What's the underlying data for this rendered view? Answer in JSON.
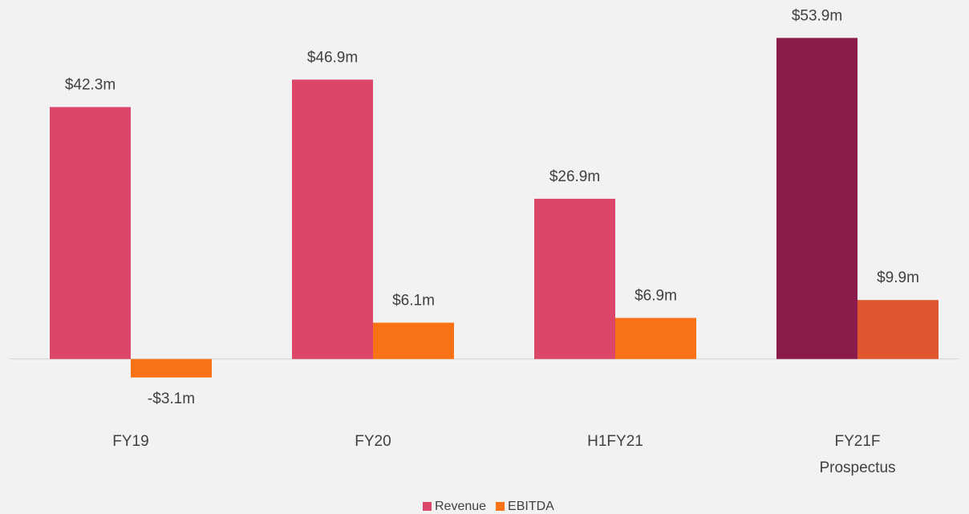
{
  "chart_data": {
    "type": "bar",
    "categories": [
      "FY19",
      "FY20",
      "H1FY21",
      "FY21F\nProspectus"
    ],
    "series": [
      {
        "name": "Revenue",
        "color": "#db4669",
        "colors": [
          "#db4669",
          "#db4669",
          "#db4669",
          "#8a1b4b"
        ],
        "values": [
          42.3,
          46.9,
          26.9,
          53.9
        ],
        "value_labels": [
          "$42.3m",
          "$46.9m",
          "$26.9m",
          "$53.9m"
        ]
      },
      {
        "name": "EBITDA",
        "color": "#f97316",
        "colors": [
          "#f97316",
          "#f97316",
          "#f97316",
          "#e0562e"
        ],
        "values": [
          -3.1,
          6.1,
          6.9,
          9.9
        ],
        "value_labels": [
          "-$3.1m",
          "$6.1m",
          "$6.9m",
          "$9.9m"
        ]
      }
    ],
    "ylim": [
      -10,
      60
    ],
    "legend": "bottom"
  }
}
